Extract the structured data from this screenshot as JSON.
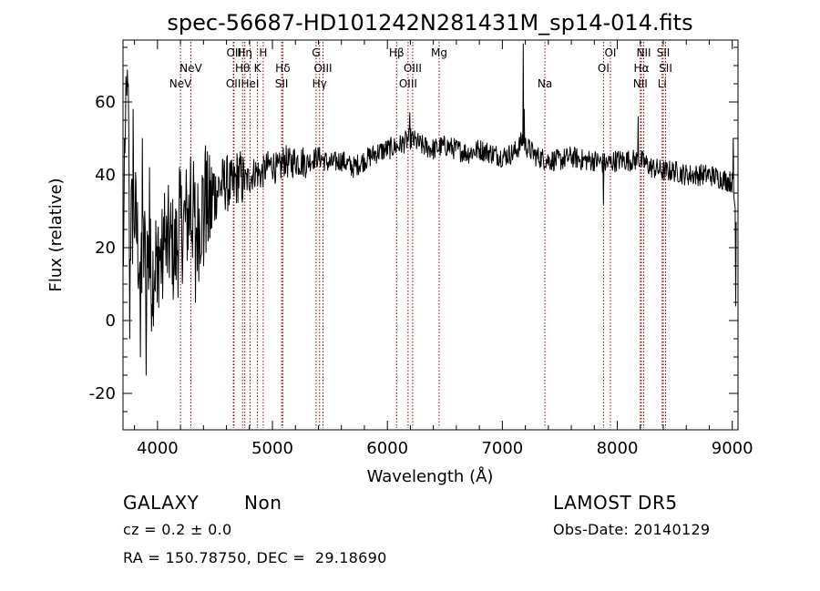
{
  "chart_data": {
    "type": "line",
    "title": "spec-56687-HD101242N281431M_sp14-014.fits",
    "xlabel": "Wavelength (Å)",
    "ylabel": "Flux (relative)",
    "xlim": [
      3700,
      9050
    ],
    "ylim": [
      -30,
      77
    ],
    "xticks": [
      4000,
      5000,
      6000,
      7000,
      8000,
      9000
    ],
    "yticks": [
      -20,
      0,
      20,
      40,
      60
    ],
    "grid": false,
    "line_color": "#000000",
    "marker_color": "#8b0000",
    "series_anchors": [
      [
        3700,
        15
      ],
      [
        3720,
        45
      ],
      [
        3740,
        60
      ],
      [
        3760,
        25
      ],
      [
        3800,
        30
      ],
      [
        3850,
        15
      ],
      [
        3900,
        20
      ],
      [
        3950,
        12
      ],
      [
        4000,
        20
      ],
      [
        4050,
        15
      ],
      [
        4100,
        22
      ],
      [
        4150,
        18
      ],
      [
        4200,
        25
      ],
      [
        4250,
        28
      ],
      [
        4300,
        30
      ],
      [
        4350,
        25
      ],
      [
        4400,
        33
      ],
      [
        4450,
        30
      ],
      [
        4500,
        35
      ],
      [
        4550,
        37
      ],
      [
        4600,
        38
      ],
      [
        4650,
        36
      ],
      [
        4700,
        40
      ],
      [
        4750,
        38
      ],
      [
        4800,
        39
      ],
      [
        4850,
        41
      ],
      [
        4900,
        40
      ],
      [
        4950,
        42
      ],
      [
        5000,
        43
      ],
      [
        5050,
        41
      ],
      [
        5100,
        44
      ],
      [
        5150,
        43
      ],
      [
        5200,
        44
      ],
      [
        5300,
        43.5
      ],
      [
        5400,
        45
      ],
      [
        5500,
        43
      ],
      [
        5600,
        44
      ],
      [
        5700,
        42
      ],
      [
        5800,
        44
      ],
      [
        5900,
        46
      ],
      [
        6000,
        47
      ],
      [
        6100,
        48
      ],
      [
        6200,
        50
      ],
      [
        6300,
        48
      ],
      [
        6400,
        47
      ],
      [
        6500,
        48
      ],
      [
        6600,
        47
      ],
      [
        6700,
        46
      ],
      [
        6800,
        47
      ],
      [
        6900,
        46
      ],
      [
        7000,
        45
      ],
      [
        7100,
        46
      ],
      [
        7150,
        48
      ],
      [
        7180,
        50
      ],
      [
        7200,
        48
      ],
      [
        7300,
        45
      ],
      [
        7400,
        44
      ],
      [
        7500,
        44
      ],
      [
        7600,
        45
      ],
      [
        7700,
        44
      ],
      [
        7800,
        44
      ],
      [
        7900,
        43
      ],
      [
        8000,
        44
      ],
      [
        8100,
        44
      ],
      [
        8200,
        44
      ],
      [
        8300,
        42
      ],
      [
        8400,
        41
      ],
      [
        8500,
        41
      ],
      [
        8600,
        40
      ],
      [
        8700,
        40
      ],
      [
        8800,
        40
      ],
      [
        8900,
        39
      ],
      [
        9000,
        38
      ],
      [
        9030,
        30
      ]
    ],
    "spikes": [
      [
        3725,
        67
      ],
      [
        3745,
        65
      ],
      [
        3760,
        -5
      ],
      [
        3790,
        58
      ],
      [
        3850,
        -10
      ],
      [
        3870,
        50
      ],
      [
        3900,
        -15
      ],
      [
        3930,
        42
      ],
      [
        4000,
        5
      ],
      [
        4060,
        35
      ],
      [
        4130,
        10
      ],
      [
        4190,
        42
      ],
      [
        4290,
        45
      ],
      [
        4330,
        5
      ],
      [
        4400,
        15
      ],
      [
        4420,
        48
      ],
      [
        6195,
        57
      ],
      [
        7180,
        76
      ],
      [
        7190,
        58
      ],
      [
        8180,
        56
      ],
      [
        7880,
        32
      ],
      [
        9010,
        50
      ],
      [
        9030,
        4
      ]
    ],
    "lines": [
      {
        "wavelength": 4200,
        "label": "NeV",
        "row": 3
      },
      {
        "wavelength": 4290,
        "label": "NeV",
        "row": 2
      },
      {
        "wavelength": 4665,
        "label": "OII",
        "row": 1
      },
      {
        "wavelength": 4660,
        "label": "OII",
        "row": 3
      },
      {
        "wavelength": 4760,
        "label": "Hη",
        "row": 1
      },
      {
        "wavelength": 4740,
        "label": "Hθ",
        "row": 2
      },
      {
        "wavelength": 4805,
        "label": "HeI",
        "row": 3
      },
      {
        "wavelength": 4870,
        "label": "K",
        "row": 2
      },
      {
        "wavelength": 4920,
        "label": "H",
        "row": 1
      },
      {
        "wavelength": 5090,
        "label": "Hδ",
        "row": 2
      },
      {
        "wavelength": 5080,
        "label": "SII",
        "row": 3
      },
      {
        "wavelength": 5380,
        "label": "G",
        "row": 1
      },
      {
        "wavelength": 5440,
        "label": "OIII",
        "row": 2
      },
      {
        "wavelength": 5410,
        "label": "Hγ",
        "row": 3
      },
      {
        "wavelength": 6080,
        "label": "Hβ",
        "row": 1
      },
      {
        "wavelength": 6220,
        "label": "OIII",
        "row": 2
      },
      {
        "wavelength": 6180,
        "label": "OIII",
        "row": 3
      },
      {
        "wavelength": 6450,
        "label": "Mg",
        "row": 1
      },
      {
        "wavelength": 7370,
        "label": "Na",
        "row": 3
      },
      {
        "wavelength": 7940,
        "label": "OI",
        "row": 1
      },
      {
        "wavelength": 7880,
        "label": "OI",
        "row": 2
      },
      {
        "wavelength": 8230,
        "label": "NII",
        "row": 1
      },
      {
        "wavelength": 8210,
        "label": "Hα",
        "row": 2
      },
      {
        "wavelength": 8200,
        "label": "NII",
        "row": 3
      },
      {
        "wavelength": 8400,
        "label": "SII",
        "row": 1
      },
      {
        "wavelength": 8420,
        "label": "SII",
        "row": 2
      },
      {
        "wavelength": 8390,
        "label": "Li",
        "row": 3
      }
    ]
  },
  "info": {
    "object_class": "GALAXY",
    "subclass": "Non",
    "cz": "cz = 0.2 ± 0.0",
    "coords": "RA = 150.78750, DEC =  29.18690",
    "survey": "LAMOST DR5",
    "obs_date": "Obs-Date: 20140129"
  }
}
